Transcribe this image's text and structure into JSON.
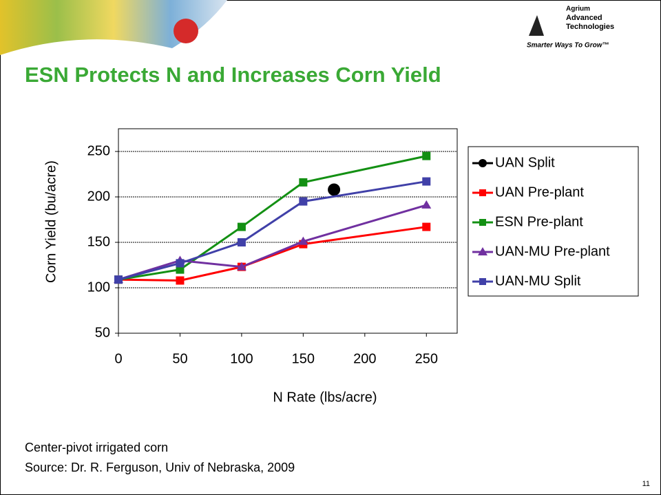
{
  "slide": {
    "logo": [
      "Agrium",
      "Advanced",
      "Technologies",
      "Smarter Ways To Grow™"
    ],
    "notes": [
      "Center-pivot irrigated corn",
      "Source:  Dr. R. Ferguson, Univ of Nebraska, 2009"
    ],
    "page_number": "11"
  },
  "chart_data": {
    "type": "line",
    "title": "ESN Protects N and Increases Corn Yield",
    "x_label": "N Rate (lbs/acre)",
    "y_label": "Corn Yield (bu/acre)",
    "xlim": [
      0,
      275
    ],
    "xticks": [
      0,
      50,
      100,
      150,
      200,
      250
    ],
    "ylim": [
      50,
      275
    ],
    "yticks": [
      50,
      100,
      150,
      200,
      250
    ],
    "grid": true,
    "legend": "right",
    "series": [
      {
        "name": "UAN Split",
        "color": "#000000",
        "marker": "circle",
        "x": [
          175
        ],
        "values": [
          208
        ]
      },
      {
        "name": "UAN Pre-plant",
        "color": "#ff0000",
        "marker": "square",
        "x": [
          0,
          50,
          100,
          150,
          250
        ],
        "values": [
          109,
          108,
          123,
          148,
          167
        ]
      },
      {
        "name": "ESN Pre-plant",
        "color": "#139013",
        "marker": "square",
        "x": [
          0,
          50,
          100,
          150,
          250
        ],
        "values": [
          109,
          120,
          167,
          216,
          245
        ]
      },
      {
        "name": "UAN-MU Pre-plant",
        "color": "#7030a0",
        "marker": "triangle",
        "x": [
          0,
          50,
          100,
          150,
          250
        ],
        "values": [
          109,
          130,
          123,
          151,
          191
        ]
      },
      {
        "name": "UAN-MU Split",
        "color": "#4040a8",
        "marker": "square",
        "x": [
          0,
          50,
          100,
          150,
          250
        ],
        "values": [
          109,
          127,
          150,
          195,
          217
        ]
      }
    ]
  }
}
